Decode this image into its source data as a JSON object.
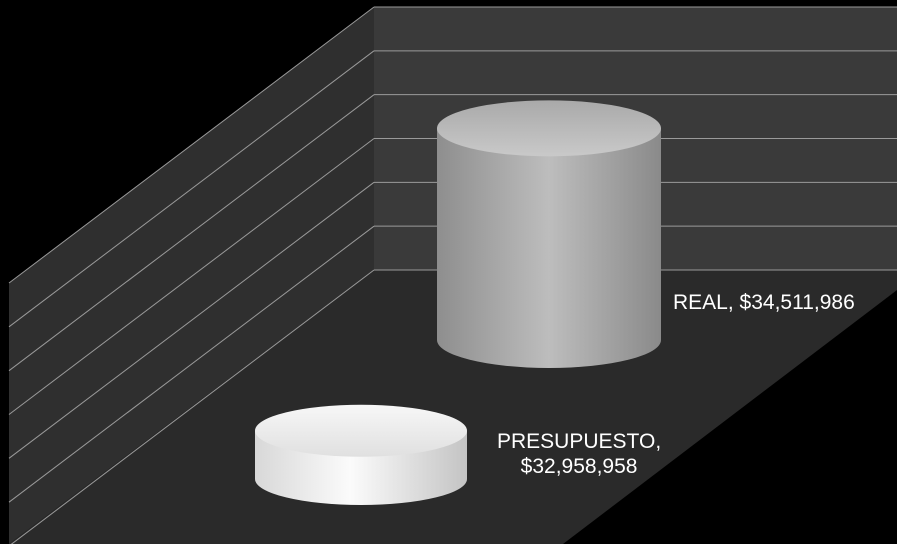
{
  "chart_data": {
    "type": "bar",
    "style": "3d-cylinder",
    "categories": [
      "PRESUPUESTO",
      "REAL"
    ],
    "values": [
      32958958,
      34511986
    ],
    "data_labels": [
      {
        "line1": "PRESUPUESTO,",
        "line2": "$32,958,958"
      },
      {
        "line1": "REAL,  $34,511,986"
      }
    ],
    "title": "",
    "xlabel": "",
    "ylabel": "",
    "ylim": [
      32500000,
      35000000
    ],
    "grid": true,
    "legend": "none",
    "colors": {
      "background": "#000000",
      "back_wall": "#3a3a3a",
      "side_wall": "#2f2f2f",
      "floor": "#2a2a2a",
      "gridline": "#9a9a9a",
      "cylinder_light": "#f2f2f2",
      "cylinder_dark": "#7a7a7a",
      "label_text": "#ffffff"
    }
  }
}
